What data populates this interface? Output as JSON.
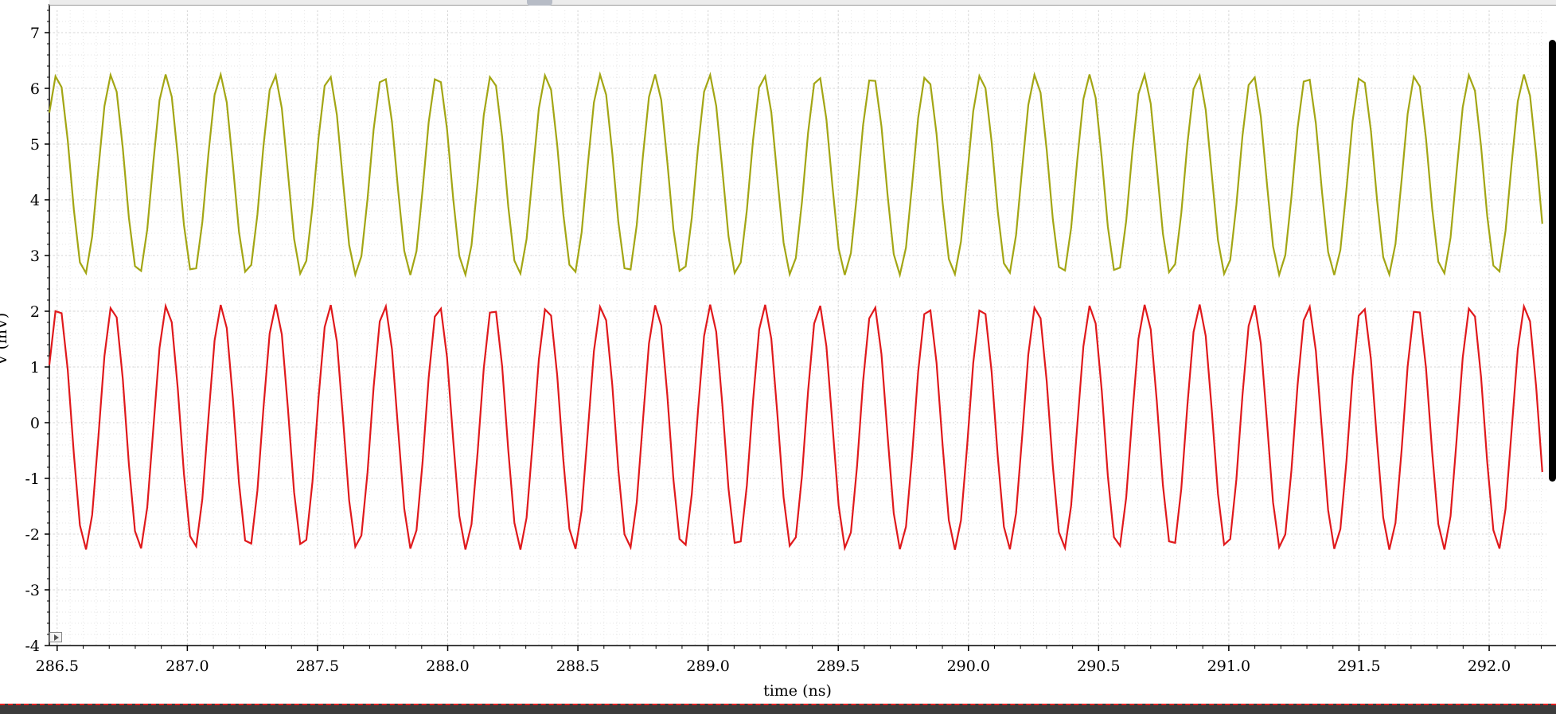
{
  "app": {
    "yaxis_title": "V (mV)",
    "xaxis_title": "time (ns)"
  },
  "colors": {
    "series1": "#a3a614",
    "series2": "#e0191c",
    "grid": "#d4d4d4",
    "axis": "#000000"
  },
  "chart_data": {
    "type": "line",
    "xlabel": "time (ns)",
    "ylabel": "V (mV)",
    "xlim": [
      286.47,
      292.22
    ],
    "ylim": [
      -4.0,
      7.4
    ],
    "xticks": [
      286.5,
      287.0,
      287.5,
      288.0,
      288.5,
      289.0,
      289.5,
      290.0,
      290.5,
      291.0,
      291.5,
      292.0,
      292.5
    ],
    "xtick_labels": [
      "286.5",
      "287.0",
      "287.5",
      "288.0",
      "288.5",
      "289.0",
      "289.5",
      "290.0",
      "290.5",
      "291.0",
      "291.5",
      "292.0",
      ""
    ],
    "yticks": [
      -4,
      -3,
      -2,
      -1,
      0,
      1,
      2,
      3,
      4,
      5,
      6,
      7
    ],
    "ytick_labels": [
      "-4",
      "-3",
      "-2",
      "-1",
      "0",
      "1",
      "2",
      "3",
      "4",
      "5",
      "6",
      "7"
    ],
    "grid": true,
    "series": [
      {
        "color": "#a3a614",
        "description": "sinusoid, period ~0.2087 ns",
        "offset": 4.45,
        "amplitude": 1.8,
        "period": 0.2087,
        "phase_time": 286.5,
        "phase_value": 6.25,
        "sample_step": 0.0235
      },
      {
        "color": "#e0191c",
        "description": "sinusoid, period ~0.2087 ns",
        "offset": -0.08,
        "amplitude": 2.2,
        "period": 0.2087,
        "phase_time": 286.5,
        "phase_value": 2.1,
        "sample_step": 0.0235
      }
    ]
  }
}
